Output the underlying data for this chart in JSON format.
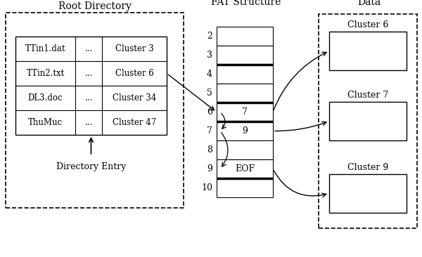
{
  "bg_color": "#ffffff",
  "title_root": "Root Directory",
  "title_fat": "FAT Structure",
  "title_data": "Data",
  "dir_entries": [
    [
      "TTin1.dat",
      "...",
      "Cluster 3"
    ],
    [
      "TTin2.txt",
      "...",
      "Cluster 6"
    ],
    [
      "DL3.doc",
      "...",
      "Cluster 34"
    ],
    [
      "ThuMuc",
      "...",
      "Cluster 47"
    ]
  ],
  "dir_label": "Directory Entry",
  "fat_rows": [
    "2",
    "3",
    "4",
    "5",
    "6",
    "7",
    "8",
    "9",
    "10"
  ],
  "fat_contents": {
    "6": "7",
    "7": "9",
    "9": "EOF"
  },
  "fat_thick_after": [
    1,
    3,
    4,
    7
  ],
  "cluster_labels": [
    "Cluster 6",
    "Cluster 7",
    "Cluster 9"
  ]
}
